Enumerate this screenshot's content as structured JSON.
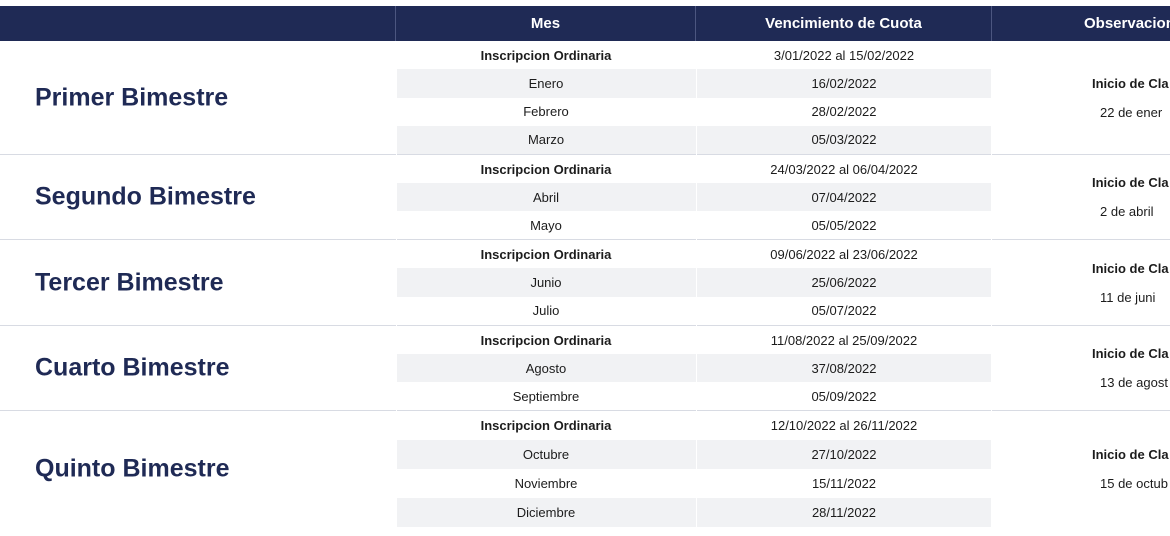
{
  "header": {
    "mes": "Mes",
    "vencimiento": "Vencimiento de Cuota",
    "observaciones": "Observacion"
  },
  "groups": [
    {
      "title": "Primer Bimestre",
      "rows": [
        {
          "mes": "Inscripcion Ordinaria",
          "venc": "3/01/2022 al 15/02/2022"
        },
        {
          "mes": "Enero",
          "venc": "16/02/2022"
        },
        {
          "mes": "Febrero",
          "venc": "28/02/2022"
        },
        {
          "mes": "Marzo",
          "venc": "05/03/2022"
        }
      ],
      "obs": {
        "line1": "Inicio de Cla",
        "line2": "22 de ener"
      }
    },
    {
      "title": "Segundo Bimestre",
      "rows": [
        {
          "mes": "Inscripcion Ordinaria",
          "venc": "24/03/2022 al 06/04/2022"
        },
        {
          "mes": "Abril",
          "venc": "07/04/2022"
        },
        {
          "mes": "Mayo",
          "venc": "05/05/2022"
        }
      ],
      "obs": {
        "line1": "Inicio de Cla",
        "line2": "2 de abril"
      }
    },
    {
      "title": "Tercer Bimestre",
      "rows": [
        {
          "mes": "Inscripcion Ordinaria",
          "venc": "09/06/2022 al 23/06/2022"
        },
        {
          "mes": "Junio",
          "venc": "25/06/2022"
        },
        {
          "mes": "Julio",
          "venc": "05/07/2022"
        }
      ],
      "obs": {
        "line1": "Inicio de Cla",
        "line2": "11 de juni"
      }
    },
    {
      "title": "Cuarto Bimestre",
      "rows": [
        {
          "mes": "Inscripcion Ordinaria",
          "venc": "11/08/2022 al 25/09/2022"
        },
        {
          "mes": "Agosto",
          "venc": "37/08/2022"
        },
        {
          "mes": "Septiembre",
          "venc": "05/09/2022"
        }
      ],
      "obs": {
        "line1": "Inicio de Cla",
        "line2": "13 de agost"
      }
    },
    {
      "title": "Quinto Bimestre",
      "rows": [
        {
          "mes": "Inscripcion Ordinaria",
          "venc": "12/10/2022 al 26/11/2022"
        },
        {
          "mes": "Octubre",
          "venc": "27/10/2022"
        },
        {
          "mes": "Noviembre",
          "venc": "15/11/2022"
        },
        {
          "mes": "Diciembre",
          "venc": "28/11/2022"
        }
      ],
      "obs": {
        "line1": "Inicio de Cla",
        "line2": "15 de octub"
      }
    }
  ],
  "colors": {
    "header_bg": "#1f2a55",
    "title": "#1f2a55",
    "alt_row": "#f1f2f4"
  }
}
